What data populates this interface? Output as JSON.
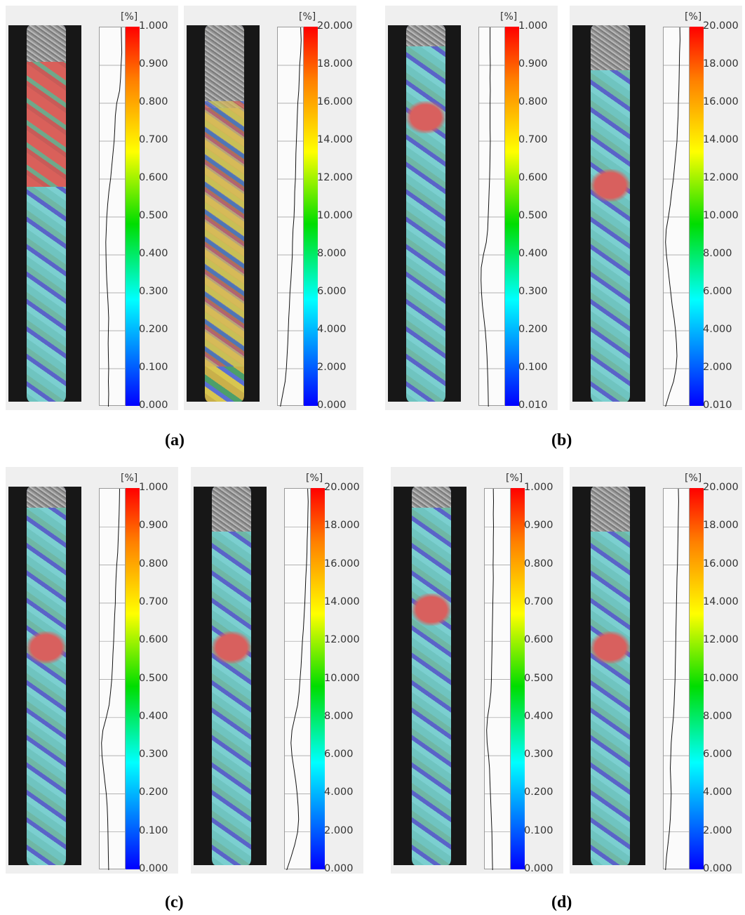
{
  "unit": "[%]",
  "captions": [
    "(a)",
    "(b)",
    "(c)",
    "(d)"
  ],
  "scales": {
    "strain1": [
      "1.000",
      "0.900",
      "0.800",
      "0.700",
      "0.600",
      "0.500",
      "0.400",
      "0.300",
      "0.200",
      "0.100",
      "0.000"
    ],
    "strain1b": [
      "1.000",
      "0.900",
      "0.800",
      "0.700",
      "0.600",
      "0.500",
      "0.400",
      "0.300",
      "0.200",
      "0.100",
      "0.010"
    ],
    "strain20": [
      "20.000",
      "18.000",
      "16.000",
      "14.000",
      "12.000",
      "10.000",
      "8.000",
      "6.000",
      "4.000",
      "2.000",
      "0.000"
    ],
    "strain20b": [
      "20.000",
      "18.000",
      "16.000",
      "14.000",
      "12.000",
      "10.000",
      "8.000",
      "6.000",
      "4.000",
      "2.000",
      "0.010"
    ]
  },
  "panels": [
    {
      "caption": "(a)",
      "scale": "strain1",
      "hotspot": "upper-band",
      "profile": [
        0.85,
        0.86,
        0.87,
        0.84,
        0.82,
        0.78,
        0.66,
        0.6,
        0.58,
        0.55,
        0.5,
        0.45,
        0.4,
        0.33,
        0.28,
        0.24,
        0.22,
        0.2,
        0.21,
        0.22,
        0.24,
        0.27,
        0.3,
        0.32,
        0.31,
        0.3,
        0.31,
        0.32,
        0.31,
        0.32,
        0.31
      ]
    },
    {
      "caption": "(a)",
      "scale": "strain20",
      "hotspot": "mid-band",
      "profile": [
        0.9,
        0.92,
        0.9,
        0.86,
        0.84,
        0.82,
        0.78,
        0.76,
        0.74,
        0.72,
        0.7,
        0.69,
        0.68,
        0.65,
        0.64,
        0.62,
        0.58,
        0.56,
        0.55,
        0.52,
        0.49,
        0.45,
        0.43,
        0.4,
        0.38,
        0.36,
        0.33,
        0.3,
        0.25,
        0.15,
        0.05
      ]
    },
    {
      "caption": "(b)",
      "scale": "strain1b",
      "hotspot": "upper-neck",
      "profile": [
        0.4,
        0.4,
        0.4,
        0.41,
        0.4,
        0.41,
        0.4,
        0.4,
        0.4,
        0.41,
        0.4,
        0.39,
        0.38,
        0.36,
        0.34,
        0.32,
        0.3,
        0.24,
        0.12,
        0.03,
        0.02,
        0.04,
        0.08,
        0.14,
        0.2,
        0.24,
        0.27,
        0.29,
        0.31,
        0.32,
        0.33
      ]
    },
    {
      "caption": "(b)",
      "scale": "strain20b",
      "hotspot": "mid-neck",
      "profile": [
        0.62,
        0.63,
        0.61,
        0.6,
        0.59,
        0.58,
        0.56,
        0.55,
        0.52,
        0.5,
        0.45,
        0.4,
        0.35,
        0.28,
        0.22,
        0.14,
        0.05,
        0.02,
        0.06,
        0.12,
        0.18,
        0.24,
        0.3,
        0.38,
        0.44,
        0.48,
        0.5,
        0.46,
        0.36,
        0.18,
        0.02
      ]
    },
    {
      "caption": "(c)",
      "scale": "strain1",
      "hotspot": "mid-neck",
      "profile": [
        0.78,
        0.77,
        0.76,
        0.74,
        0.72,
        0.7,
        0.66,
        0.63,
        0.61,
        0.6,
        0.57,
        0.55,
        0.53,
        0.5,
        0.48,
        0.45,
        0.4,
        0.34,
        0.22,
        0.08,
        0.02,
        0.04,
        0.1,
        0.16,
        0.22,
        0.26,
        0.28,
        0.29,
        0.3,
        0.31,
        0.32
      ]
    },
    {
      "caption": "(c)",
      "scale": "strain20",
      "hotspot": "mid-neck",
      "profile": [
        0.9,
        0.92,
        0.91,
        0.9,
        0.88,
        0.87,
        0.85,
        0.82,
        0.8,
        0.78,
        0.75,
        0.72,
        0.68,
        0.65,
        0.62,
        0.58,
        0.54,
        0.48,
        0.36,
        0.24,
        0.2,
        0.24,
        0.32,
        0.4,
        0.46,
        0.5,
        0.52,
        0.48,
        0.36,
        0.2,
        0.02
      ]
    },
    {
      "caption": "(d)",
      "scale": "strain1",
      "hotspot": "upper-neck",
      "profile": [
        0.3,
        0.31,
        0.3,
        0.31,
        0.3,
        0.3,
        0.29,
        0.3,
        0.29,
        0.28,
        0.27,
        0.26,
        0.25,
        0.24,
        0.23,
        0.22,
        0.2,
        0.14,
        0.06,
        0.02,
        0.04,
        0.1,
        0.14,
        0.16,
        0.18,
        0.2,
        0.22,
        0.24,
        0.25,
        0.26,
        0.27
      ]
    },
    {
      "caption": "(d)",
      "scale": "strain20",
      "hotspot": "mid-neck",
      "profile": [
        0.56,
        0.57,
        0.56,
        0.55,
        0.54,
        0.53,
        0.52,
        0.5,
        0.49,
        0.48,
        0.47,
        0.46,
        0.45,
        0.44,
        0.43,
        0.42,
        0.4,
        0.38,
        0.35,
        0.3,
        0.26,
        0.24,
        0.22,
        0.24,
        0.26,
        0.24,
        0.22,
        0.18,
        0.12,
        0.06,
        0.02
      ]
    }
  ]
}
